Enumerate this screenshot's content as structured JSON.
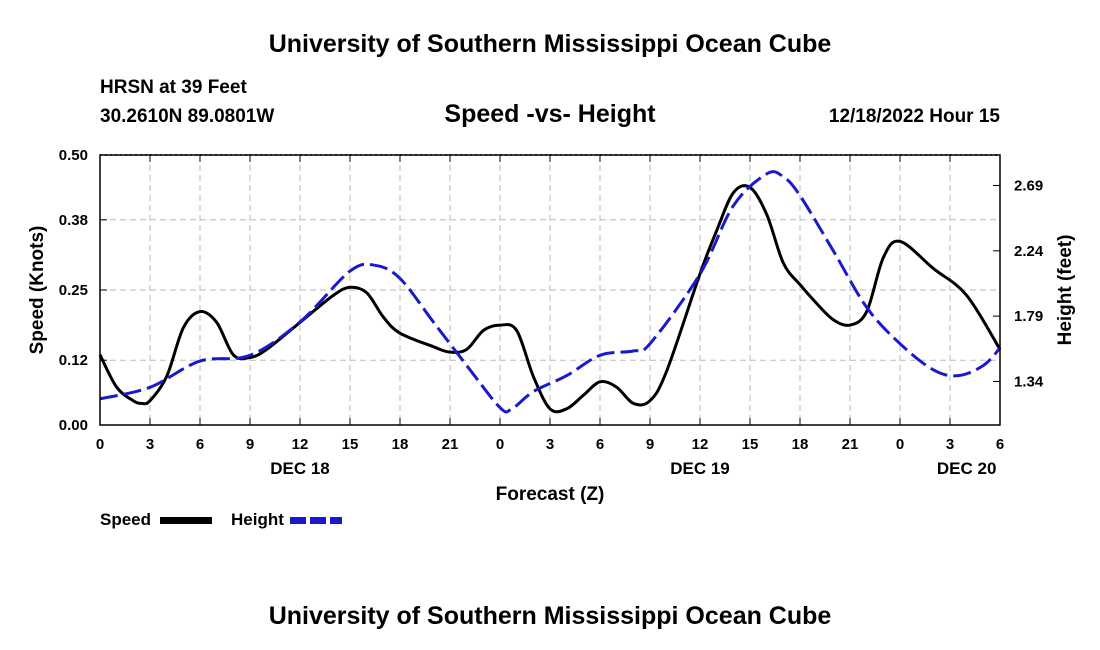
{
  "header": {
    "title_top": "University of Southern Mississippi Ocean Cube",
    "station": "HRSN at 39 Feet",
    "coords": "30.2610N  89.0801W",
    "chart_title": "Speed -vs- Height",
    "datetime": "12/18/2022 Hour 15",
    "title_bottom": "University of Southern Mississippi Ocean Cube"
  },
  "legend": {
    "speed_label": "Speed",
    "height_label": "Height",
    "speed_color": "#000000",
    "height_color": "#1a1acc"
  },
  "chart_data": {
    "type": "line",
    "title": "Speed -vs- Height",
    "xlabel": "Forecast (Z)",
    "ylabel": "Speed (Knots)",
    "y2label": "Height (feet)",
    "x_range": [
      0,
      54
    ],
    "ylim": [
      0,
      0.5
    ],
    "y2lim": [
      1.04,
      2.9
    ],
    "x_tick_values": [
      0,
      3,
      6,
      9,
      12,
      15,
      18,
      21,
      24,
      27,
      30,
      33,
      36,
      39,
      42,
      45,
      48,
      51,
      54
    ],
    "x_tick_labels": [
      "0",
      "3",
      "6",
      "9",
      "12",
      "15",
      "18",
      "21",
      "0",
      "3",
      "6",
      "9",
      "12",
      "15",
      "18",
      "21",
      "0",
      "3",
      "6"
    ],
    "day_labels": [
      {
        "x": 12,
        "label": "DEC 18"
      },
      {
        "x": 36,
        "label": "DEC 19"
      },
      {
        "x": 52,
        "label": "DEC 20"
      }
    ],
    "y_ticks": [
      0.0,
      0.12,
      0.25,
      0.38,
      0.5
    ],
    "y_tick_labels": [
      "0.00",
      "0.12",
      "0.25",
      "0.38",
      "0.50"
    ],
    "y2_ticks": [
      1.34,
      1.79,
      2.24,
      2.69
    ],
    "y2_tick_labels": [
      "1.34",
      "1.79",
      "2.24",
      "2.69"
    ],
    "grid": true,
    "series": [
      {
        "name": "Speed",
        "axis": "left",
        "color": "#000000",
        "dash": "solid",
        "x": [
          0,
          1,
          2,
          2.5,
          3,
          4,
          5,
          6,
          7,
          8,
          9,
          10,
          12,
          14,
          15,
          16,
          17,
          18,
          20,
          21,
          22,
          23,
          24,
          25,
          26,
          27,
          28,
          29,
          30,
          31,
          32,
          33,
          34,
          36,
          37,
          38,
          39,
          40,
          41,
          42,
          43,
          44,
          45,
          46,
          47,
          48,
          50,
          52,
          54
        ],
        "values": [
          0.13,
          0.07,
          0.045,
          0.04,
          0.045,
          0.09,
          0.18,
          0.21,
          0.19,
          0.13,
          0.125,
          0.14,
          0.19,
          0.24,
          0.255,
          0.245,
          0.2,
          0.17,
          0.145,
          0.135,
          0.14,
          0.175,
          0.185,
          0.175,
          0.09,
          0.03,
          0.03,
          0.055,
          0.08,
          0.07,
          0.04,
          0.045,
          0.1,
          0.28,
          0.36,
          0.43,
          0.44,
          0.39,
          0.3,
          0.26,
          0.225,
          0.195,
          0.185,
          0.21,
          0.31,
          0.34,
          0.29,
          0.24,
          0.14
        ]
      },
      {
        "name": "Height",
        "axis": "right",
        "color": "#1a1acc",
        "dash": "dashed",
        "x": [
          0,
          3,
          6,
          9,
          12,
          15,
          16.5,
          18,
          20,
          22,
          24,
          24.7,
          26,
          28,
          30,
          32,
          33,
          36,
          38,
          40,
          41,
          42,
          44,
          46,
          48,
          50,
          51.5,
          53,
          54
        ],
        "values": [
          1.22,
          1.3,
          1.48,
          1.52,
          1.75,
          2.1,
          2.14,
          2.05,
          1.75,
          1.45,
          1.16,
          1.15,
          1.27,
          1.38,
          1.52,
          1.55,
          1.6,
          2.08,
          2.55,
          2.77,
          2.75,
          2.62,
          2.24,
          1.85,
          1.6,
          1.42,
          1.38,
          1.45,
          1.57
        ]
      }
    ]
  }
}
